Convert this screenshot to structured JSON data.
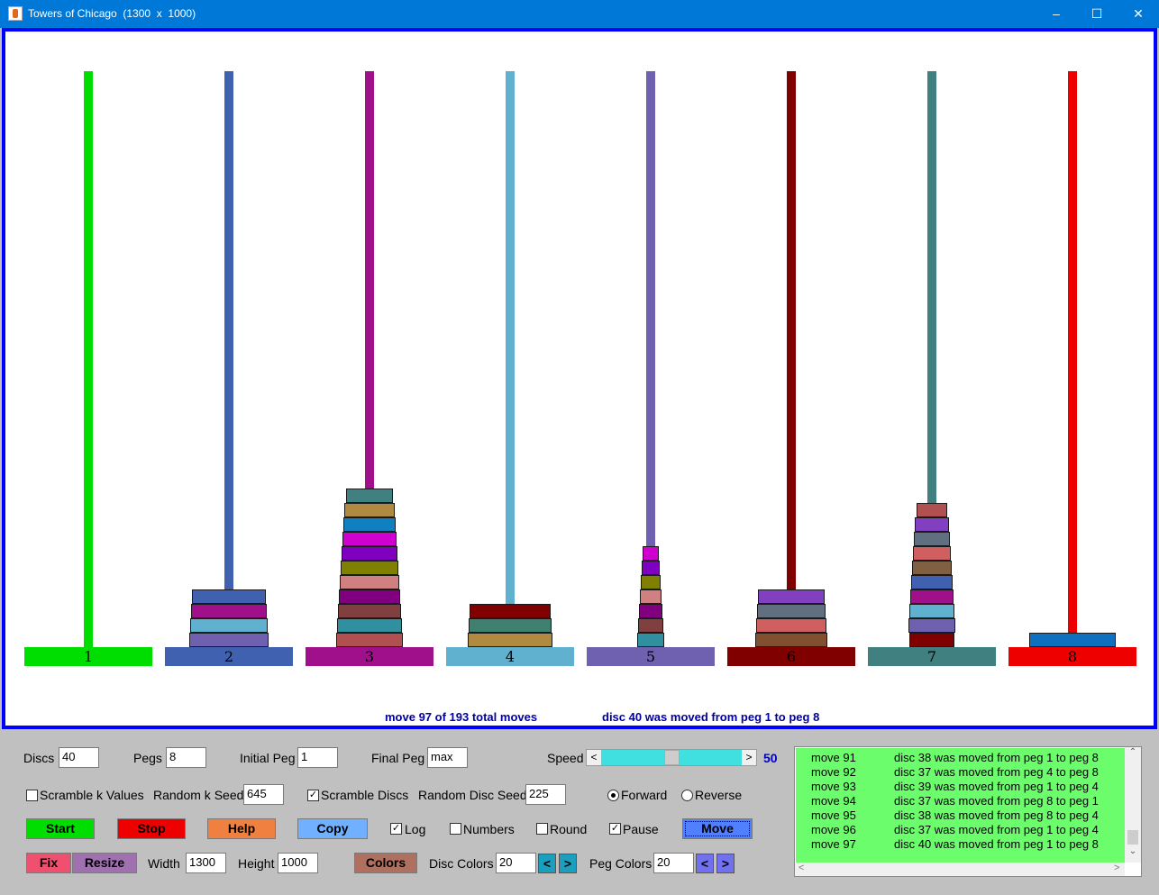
{
  "window": {
    "title": "Towers of Chicago  (1300  x  1000)",
    "minimize_icon": "minimize-icon",
    "maximize_icon": "maximize-icon",
    "close_icon": "close-icon"
  },
  "pegs": [
    {
      "label": "1",
      "color": "#00dd00",
      "discs": []
    },
    {
      "label": "2",
      "color": "#4060b0",
      "discs": [
        "#4060b0",
        "#a0108a",
        "#60b0d0",
        "#7060b0"
      ]
    },
    {
      "label": "3",
      "color": "#a0108a",
      "discs": [
        "#408080",
        "#b08a40",
        "#1080c0",
        "#d000d0",
        "#8000c0",
        "#808000",
        "#d08080",
        "#800080",
        "#804040",
        "#3090a0",
        "#b05050"
      ]
    },
    {
      "label": "4",
      "color": "#60b0d0",
      "discs": [
        "#800000",
        "#408070",
        "#b08a40"
      ]
    },
    {
      "label": "5",
      "color": "#7060b0",
      "discs": [
        "#d000d0",
        "#8000c0",
        "#808000",
        "#d08080",
        "#800080",
        "#804040",
        "#3090a0"
      ]
    },
    {
      "label": "6",
      "color": "#800000",
      "discs": [
        "#8040c0",
        "#607080",
        "#d06060",
        "#805030"
      ]
    },
    {
      "label": "7",
      "color": "#408080",
      "discs": [
        "#b05050",
        "#8040c0",
        "#607080",
        "#d06060",
        "#806040",
        "#4060b0",
        "#a0108a",
        "#60b0d0",
        "#7060b0",
        "#800000"
      ]
    },
    {
      "label": "8",
      "color": "#ee0000",
      "discs": [
        "#1070c0"
      ]
    }
  ],
  "status": {
    "move": "move 97 of 193 total moves",
    "last": "disc 40 was moved from peg 1 to peg 8"
  },
  "controls": {
    "discs_label": "Discs",
    "discs_value": "40",
    "pegs_label": "Pegs",
    "pegs_value": "8",
    "initial_peg_label": "Initial Peg",
    "initial_peg_value": "1",
    "final_peg_label": "Final Peg",
    "final_peg_value": "max",
    "speed_label": "Speed",
    "speed_value": "50",
    "speed_fraction": 0.5,
    "scramble_k_label": "Scramble k Values",
    "scramble_k_checked": false,
    "random_k_seed_label": "Random k Seed",
    "random_k_seed_value": "645",
    "scramble_discs_label": "Scramble Discs",
    "scramble_discs_checked": true,
    "random_disc_seed_label": "Random Disc Seed",
    "random_disc_seed_value": "225",
    "forward_label": "Forward",
    "reverse_label": "Reverse",
    "direction": "Forward",
    "start_label": "Start",
    "stop_label": "Stop",
    "help_label": "Help",
    "copy_label": "Copy",
    "log_label": "Log",
    "log_checked": true,
    "numbers_label": "Numbers",
    "numbers_checked": false,
    "round_label": "Round",
    "round_checked": false,
    "pause_label": "Pause",
    "pause_checked": true,
    "move_label": "Move",
    "fix_label": "Fix",
    "resize_label": "Resize",
    "width_label": "Width",
    "width_value": "1300",
    "height_label": "Height",
    "height_value": "1000",
    "colors_label": "Colors",
    "disc_colors_label": "Disc Colors",
    "disc_colors_value": "20",
    "peg_colors_label": "Peg Colors",
    "peg_colors_value": "20",
    "prev_symbol": "<",
    "next_symbol": ">",
    "check_symbol": "✓"
  },
  "log": [
    {
      "move": "move 91",
      "desc": "disc 38 was moved from peg 1 to peg 8"
    },
    {
      "move": "move 92",
      "desc": "disc 37 was moved from peg 4 to peg 8"
    },
    {
      "move": "move 93",
      "desc": "disc 39 was moved from peg 1 to peg 4"
    },
    {
      "move": "move 94",
      "desc": "disc 37 was moved from peg 8 to peg 1"
    },
    {
      "move": "move 95",
      "desc": "disc 38 was moved from peg 8 to peg 4"
    },
    {
      "move": "move 96",
      "desc": "disc 37 was moved from peg 1 to peg 4"
    },
    {
      "move": "move 97",
      "desc": "disc 40 was moved from peg 1 to peg 8"
    }
  ],
  "colors": {
    "title_bar": "#0078d7",
    "canvas_border": "#0000ff",
    "status_text": "#0000a0",
    "start": "#00dd00",
    "stop": "#ee0000",
    "help": "#f08040",
    "copy": "#70b0ff",
    "move": "#5080ff",
    "fix": "#f05070",
    "resize": "#a070b0",
    "colors_btn": "#b07060",
    "disc_arrows": "#1a9fbf",
    "peg_arrows": "#7070f0",
    "log_bg": "#6cfd6c",
    "slider_track": "#40e0e0"
  }
}
